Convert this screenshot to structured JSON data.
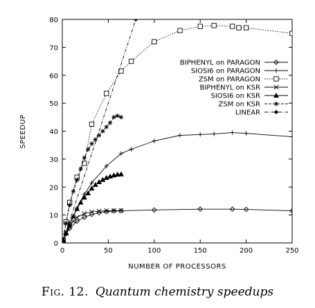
{
  "chart_data": {
    "type": "line",
    "xlabel": "NUMBER OF PROCESSORS",
    "ylabel": "SPEEDUP",
    "xlim": [
      0,
      250
    ],
    "ylim": [
      0,
      80
    ],
    "xticks": [
      0,
      50,
      100,
      150,
      200,
      250
    ],
    "yticks": [
      0,
      10,
      20,
      30,
      40,
      50,
      60,
      70,
      80
    ],
    "grid": false,
    "legend_position": "right",
    "series": [
      {
        "name": "BIPHENYL on PARAGON",
        "marker": "diamond",
        "dash": "solid",
        "x": [
          1,
          4,
          8,
          16,
          24,
          32,
          40,
          48,
          56,
          64,
          100,
          150,
          185,
          200,
          250
        ],
        "y": [
          1,
          3.2,
          5.2,
          7.8,
          9.2,
          10.2,
          10.8,
          11.2,
          11.4,
          11.5,
          11.8,
          12.1,
          12.1,
          12.0,
          11.5
        ]
      },
      {
        "name": "SIOSI6 on PARAGON",
        "marker": "plus",
        "dash": "solid",
        "x": [
          1,
          4,
          8,
          16,
          24,
          32,
          48,
          64,
          75,
          100,
          128,
          150,
          165,
          185,
          200,
          250
        ],
        "y": [
          1,
          3.5,
          6.8,
          12.5,
          17.5,
          21.5,
          27.5,
          32,
          33.5,
          36.5,
          38.5,
          38.8,
          39,
          39.5,
          39.2,
          38
        ]
      },
      {
        "name": "ZSM on PARAGON",
        "marker": "square",
        "dash": "dotted",
        "x": [
          1,
          4,
          8,
          16,
          24,
          32,
          48,
          64,
          75,
          100,
          128,
          150,
          165,
          185,
          192,
          200,
          250
        ],
        "y": [
          1,
          7.5,
          14.5,
          23.5,
          28.5,
          42.5,
          53.5,
          61.5,
          65,
          72,
          76,
          77.5,
          77.8,
          77.5,
          77,
          77,
          75
        ]
      },
      {
        "name": "BIPHENYL on KSR",
        "marker": "x",
        "dash": "solid",
        "x": [
          1,
          4,
          8,
          12,
          16,
          24,
          32,
          40,
          48,
          56,
          64
        ],
        "y": [
          1,
          3.5,
          5.8,
          7.8,
          9.2,
          10.5,
          11.1,
          11.4,
          11.5,
          11.6,
          11.6
        ]
      },
      {
        "name": "SIOSI6 on KSR",
        "marker": "triangle",
        "dash": "solid",
        "x": [
          1,
          4,
          8,
          12,
          16,
          20,
          24,
          28,
          32,
          36,
          40,
          44,
          48,
          52,
          56,
          60,
          64
        ],
        "y": [
          1,
          3.6,
          6.5,
          9.5,
          12.2,
          14.5,
          16.3,
          17.8,
          19.5,
          20.8,
          21.8,
          22.6,
          23.3,
          23.8,
          24.2,
          24.5,
          24.6
        ]
      },
      {
        "name": "ZSM on KSR",
        "marker": "asterisk",
        "dash": "dashed",
        "x": [
          1,
          4,
          8,
          12,
          16,
          20,
          24,
          28,
          32,
          36,
          40,
          44,
          48,
          52,
          56,
          60,
          64
        ],
        "y": [
          1,
          7,
          13.5,
          18.5,
          22.5,
          26.5,
          30.5,
          33.5,
          35.5,
          37,
          38.5,
          40,
          41.5,
          43,
          45,
          45.5,
          45
        ]
      },
      {
        "name": "LINEAR",
        "marker": "diamond-small",
        "dash": "dashdot",
        "x": [
          0,
          80
        ],
        "y": [
          0,
          80
        ]
      }
    ]
  },
  "caption": {
    "label": "Fig. 12.",
    "title": "Quantum chemistry speedups"
  }
}
